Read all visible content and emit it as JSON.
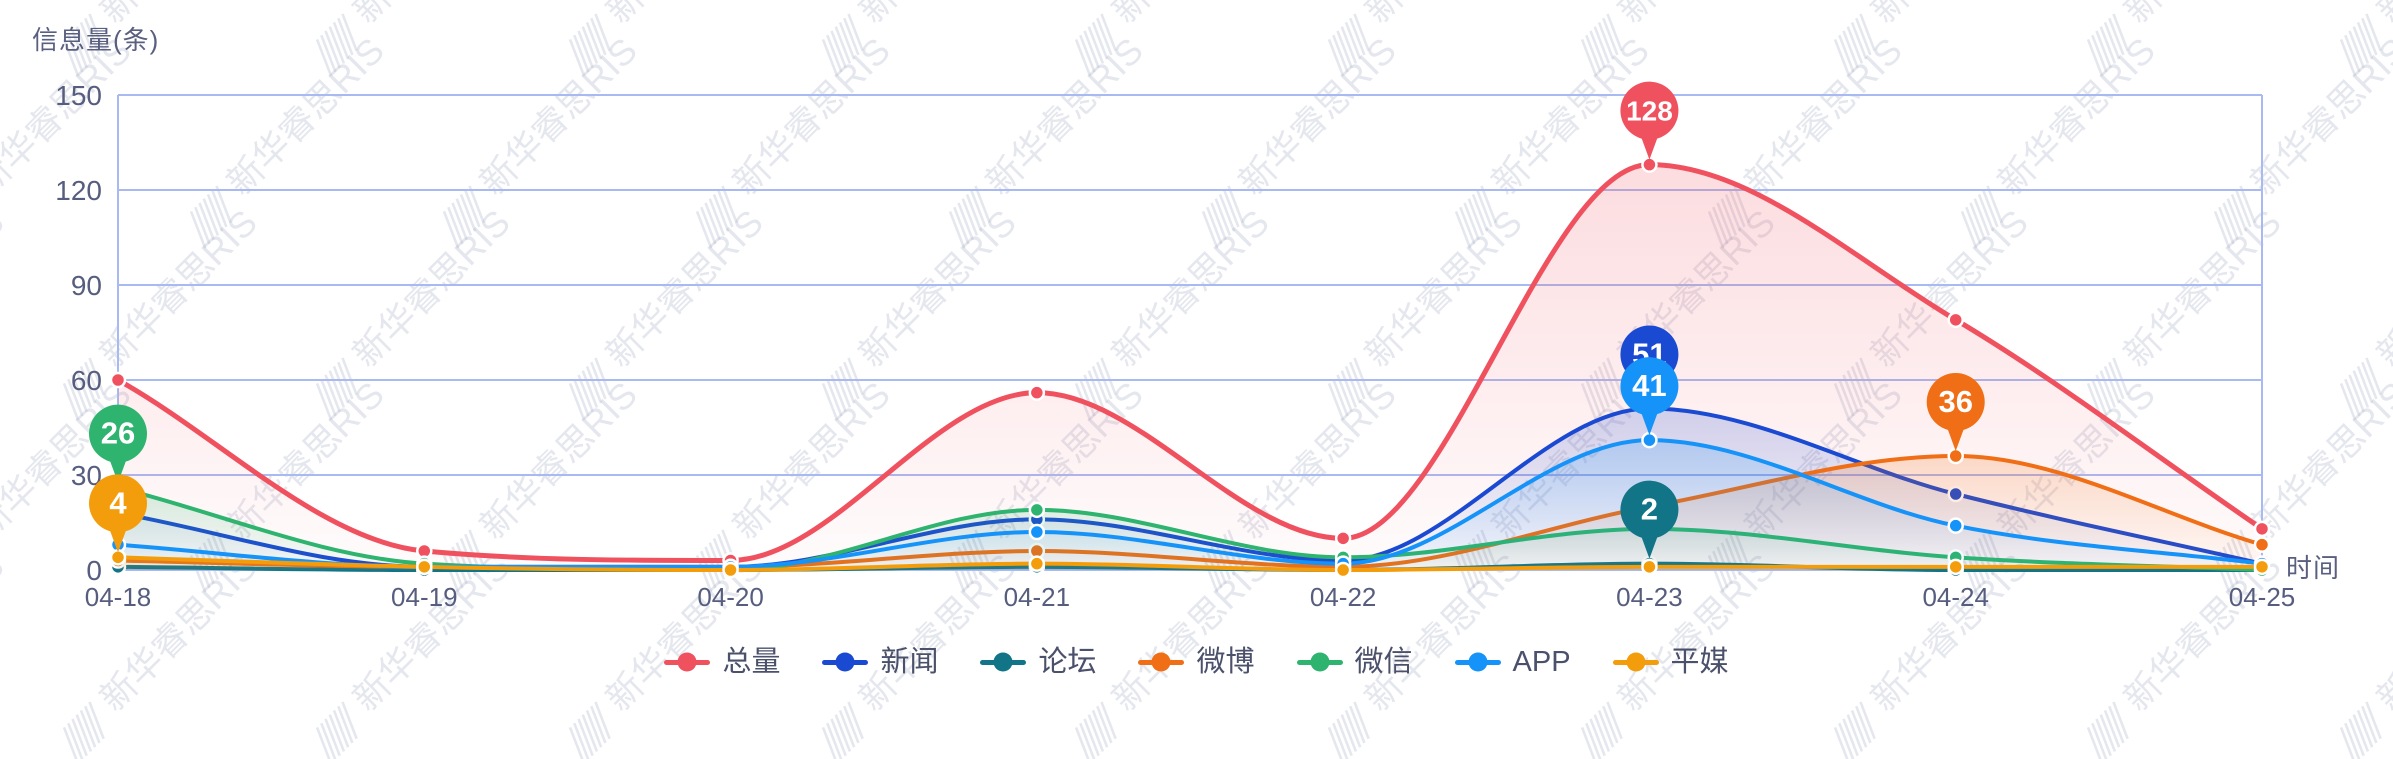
{
  "watermark": {
    "text": "新华睿思RIS"
  },
  "axes": {
    "y_title": "信息量(条)",
    "x_title": "时间"
  },
  "colors": {
    "grid": "#a9baf2",
    "axis_border": "#a9baf2",
    "tick_label": "#565d7e",
    "legend_text": "#4b506b",
    "watermark": "#aab0c6",
    "background": "#ffffff"
  },
  "chart_data": {
    "type": "line",
    "title": "",
    "ylabel": "信息量(条)",
    "xlabel": "时间",
    "smooth": true,
    "grid": true,
    "legend_position": "bottom",
    "categories": [
      "04-18",
      "04-19",
      "04-20",
      "04-21",
      "04-22",
      "04-23",
      "04-24",
      "04-25"
    ],
    "yticks": [
      0,
      30,
      60,
      90,
      120,
      150
    ],
    "ylim": [
      0,
      150
    ],
    "series": [
      {
        "name": "总量",
        "color": "#f0515f",
        "values": [
          60,
          6,
          3,
          56,
          10,
          128,
          79,
          13
        ]
      },
      {
        "name": "新闻",
        "color": "#1b4ad2",
        "values": [
          18,
          1,
          1,
          16,
          3,
          51,
          24,
          2
        ]
      },
      {
        "name": "论坛",
        "color": "#127487",
        "values": [
          1,
          0,
          0,
          1,
          0,
          2,
          0,
          0
        ]
      },
      {
        "name": "微博",
        "color": "#f06e15",
        "values": [
          3,
          1,
          1,
          6,
          1,
          20,
          36,
          8
        ]
      },
      {
        "name": "微信",
        "color": "#2eb46f",
        "values": [
          26,
          2,
          0,
          19,
          4,
          13,
          4,
          0
        ]
      },
      {
        "name": "APP",
        "color": "#1693f8",
        "values": [
          8,
          1,
          1,
          12,
          2,
          41,
          14,
          2
        ]
      },
      {
        "name": "平媒",
        "color": "#f49d0c",
        "values": [
          4,
          1,
          0,
          2,
          0,
          1,
          1,
          1
        ]
      }
    ],
    "markers": [
      {
        "series": "总量",
        "category": "04-23",
        "value": 128
      },
      {
        "series": "新闻",
        "category": "04-23",
        "value": 51
      },
      {
        "series": "APP",
        "category": "04-23",
        "value": 41
      },
      {
        "series": "论坛",
        "category": "04-23",
        "value": 2
      },
      {
        "series": "微博",
        "category": "04-24",
        "value": 36
      },
      {
        "series": "微信",
        "category": "04-18",
        "value": 26
      },
      {
        "series": "平媒",
        "category": "04-18",
        "value": 4
      }
    ]
  }
}
